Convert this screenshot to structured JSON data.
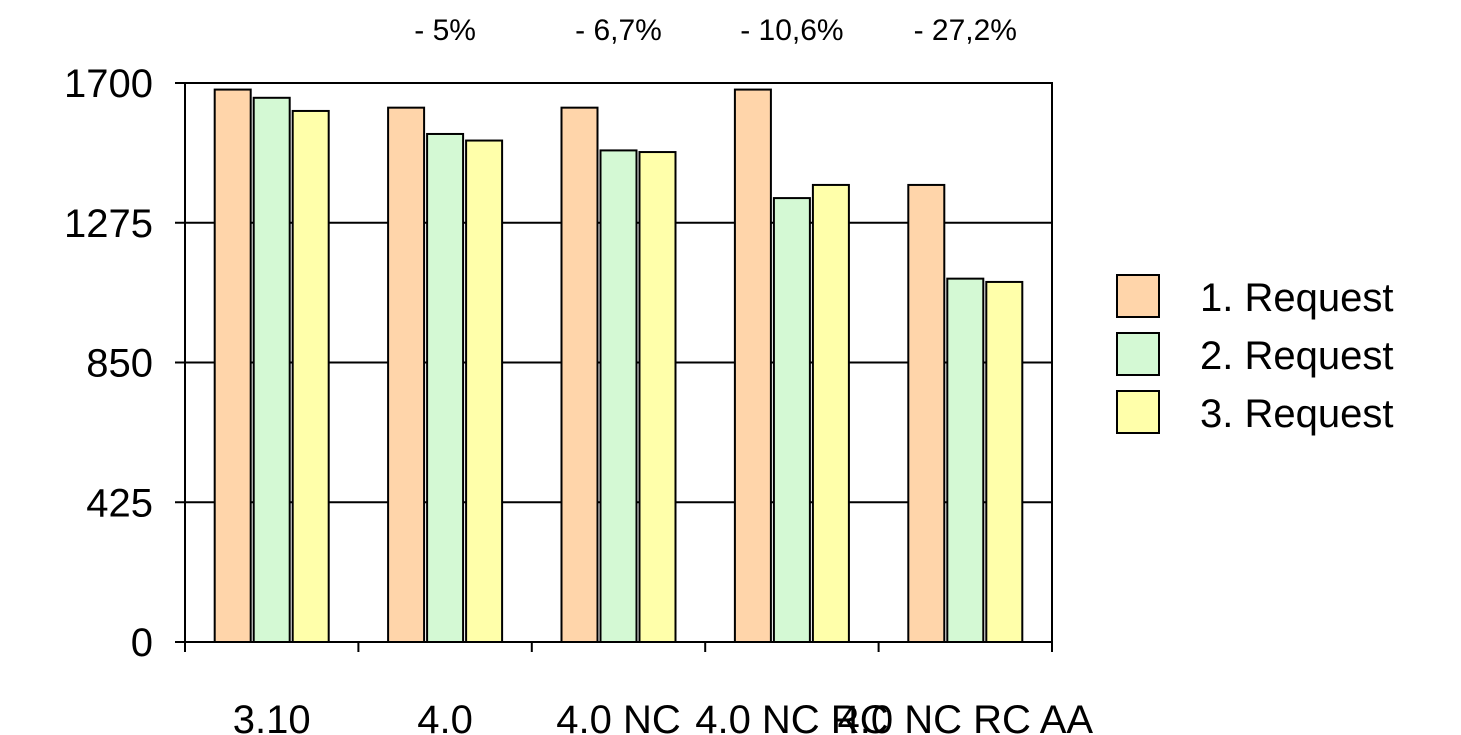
{
  "chart_data": {
    "type": "bar",
    "categories": [
      "3.10",
      "4.0",
      "4.0 NC",
      "4.0 NC RC",
      "4.0 NC RC AA"
    ],
    "series": [
      {
        "name": "1. Request",
        "color": "#FFD5AA",
        "values": [
          1680,
          1625,
          1625,
          1680,
          1390
        ]
      },
      {
        "name": "2. Request",
        "color": "#D4F9D4",
        "values": [
          1655,
          1545,
          1495,
          1350,
          1105
        ]
      },
      {
        "name": "3. Request",
        "color": "#FFFFAA",
        "values": [
          1615,
          1525,
          1490,
          1390,
          1095
        ]
      }
    ],
    "annotations": [
      "",
      "- 5%",
      "- 6,7%",
      "- 10,6%",
      "- 27,2%"
    ],
    "yticks": [
      "0",
      "425",
      "850",
      "1275",
      "1700"
    ],
    "ylim": [
      0,
      1700
    ],
    "grid": true,
    "legend_position": "right"
  }
}
